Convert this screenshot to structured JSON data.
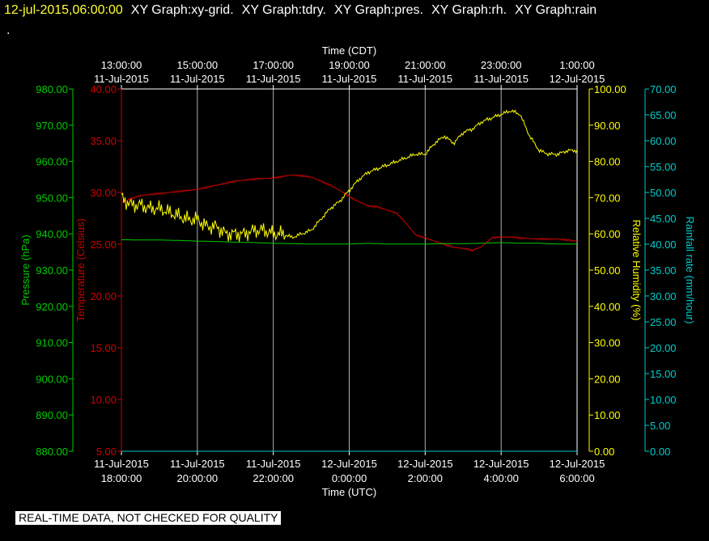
{
  "header": {
    "timestamp": "12-jul-2015,06:00:00",
    "graphs": [
      "XY Graph:xy-grid.",
      "XY Graph:tdry.",
      "XY Graph:pres.",
      "XY Graph:rh.",
      "XY Graph:rain"
    ],
    "dot": "."
  },
  "footer": {
    "quality_notice": "REAL-TIME DATA, NOT CHECKED FOR QUALITY"
  },
  "colors": {
    "pressure": "#00cc00",
    "temperature": "#cc0000",
    "humidity": "#ffff00",
    "rainfall": "#00cccc",
    "grid": "#b0b0b0"
  },
  "chart_data": {
    "type": "line",
    "x_top_label": "Time (CDT)",
    "x_bottom_label": "Time (UTC)",
    "x_top_ticks": [
      {
        "time": "13:00:00",
        "date": "11-Jul-2015"
      },
      {
        "time": "15:00:00",
        "date": "11-Jul-2015"
      },
      {
        "time": "17:00:00",
        "date": "11-Jul-2015"
      },
      {
        "time": "19:00:00",
        "date": "11-Jul-2015"
      },
      {
        "time": "21:00:00",
        "date": "11-Jul-2015"
      },
      {
        "time": "23:00:00",
        "date": "11-Jul-2015"
      },
      {
        "time": "1:00:00",
        "date": "12-Jul-2015"
      }
    ],
    "x_bottom_ticks": [
      {
        "date": "11-Jul-2015",
        "time": "18:00:00"
      },
      {
        "date": "11-Jul-2015",
        "time": "20:00:00"
      },
      {
        "date": "11-Jul-2015",
        "time": "22:00:00"
      },
      {
        "date": "12-Jul-2015",
        "time": "0:00:00"
      },
      {
        "date": "12-Jul-2015",
        "time": "2:00:00"
      },
      {
        "date": "12-Jul-2015",
        "time": "4:00:00"
      },
      {
        "date": "12-Jul-2015",
        "time": "6:00:00"
      }
    ],
    "x_range_utc": [
      "11-Jul-2015 18:00:00",
      "12-Jul-2015 06:00:00"
    ],
    "grid": true,
    "axes": {
      "pressure": {
        "label": "Pressure (hPa)",
        "range": [
          880,
          980
        ],
        "ticks": [
          "980.00",
          "970.00",
          "960.00",
          "950.00",
          "940.00",
          "930.00",
          "920.00",
          "910.00",
          "900.00",
          "890.00",
          "880.00"
        ]
      },
      "temperature": {
        "label": "Temperature (Celsius)",
        "range": [
          5,
          40
        ],
        "ticks": [
          "40.00",
          "35.00",
          "30.00",
          "25.00",
          "20.00",
          "15.00",
          "10.00",
          "5.00"
        ]
      },
      "humidity": {
        "label": "Relative Humidity (%)",
        "range": [
          0,
          100
        ],
        "ticks": [
          "100.00",
          "90.00",
          "80.00",
          "70.00",
          "60.00",
          "50.00",
          "40.00",
          "30.00",
          "20.00",
          "10.00",
          "0.00"
        ]
      },
      "rainfall": {
        "label": "Rainfall rate (mm/hour)",
        "range": [
          0,
          70
        ],
        "ticks": [
          "70.00",
          "65.00",
          "60.00",
          "55.00",
          "50.00",
          "45.00",
          "40.00",
          "35.00",
          "30.00",
          "25.00",
          "20.00",
          "15.00",
          "10.00",
          "5.00",
          "0.00"
        ]
      }
    },
    "series": [
      {
        "axis": "temperature",
        "x": [
          0,
          0.25,
          0.5,
          0.75,
          1,
          1.5,
          2,
          2.5,
          3,
          3.5,
          4,
          4.5,
          5,
          5.25,
          5.5,
          5.75,
          6,
          6.25,
          6.5,
          6.75,
          7,
          7.25,
          7.5,
          7.75,
          8,
          8.25,
          8.5,
          8.75,
          9,
          9.25,
          9.5,
          9.75,
          10,
          10.25,
          10.5,
          11,
          11.5,
          12
        ],
        "y": [
          29.0,
          29.4,
          29.7,
          29.8,
          29.9,
          30.1,
          30.3,
          30.7,
          31.1,
          31.3,
          31.4,
          31.7,
          31.5,
          31.1,
          30.7,
          30.2,
          29.6,
          29.1,
          28.7,
          28.6,
          28.3,
          28.0,
          27.0,
          25.9,
          25.6,
          25.3,
          25.0,
          24.7,
          24.6,
          24.4,
          24.8,
          25.6,
          25.7,
          25.7,
          25.6,
          25.5,
          25.5,
          25.3
        ]
      },
      {
        "axis": "humidity",
        "x": [
          0,
          0.25,
          0.5,
          0.75,
          1,
          1.25,
          1.5,
          1.75,
          2,
          2.25,
          2.5,
          2.75,
          3,
          3.25,
          3.5,
          3.75,
          4,
          4.25,
          4.5,
          4.75,
          5,
          5.25,
          5.5,
          5.75,
          6,
          6.25,
          6.5,
          6.75,
          7,
          7.25,
          7.5,
          7.75,
          8,
          8.25,
          8.5,
          8.75,
          9,
          9.25,
          9.5,
          9.75,
          10,
          10.25,
          10.5,
          10.75,
          11,
          11.25,
          11.5,
          11.75,
          12
        ],
        "y": [
          70,
          68,
          68,
          67,
          67,
          66,
          65,
          64,
          64,
          62,
          62,
          60,
          60,
          60,
          61,
          61,
          60,
          60,
          59,
          60,
          61,
          64,
          67,
          69,
          72,
          75,
          77,
          78,
          79,
          80,
          81,
          82,
          82,
          85,
          87,
          85,
          88,
          89,
          91,
          92,
          93,
          94,
          93,
          87,
          83,
          82,
          82,
          83,
          83
        ]
      },
      {
        "axis": "pressure",
        "x": [
          0,
          0.5,
          1,
          1.5,
          2,
          2.5,
          3,
          3.5,
          4,
          4.5,
          5,
          5.5,
          6,
          6.5,
          7,
          7.5,
          8,
          8.5,
          9,
          9.5,
          10,
          10.5,
          11,
          11.5,
          12
        ],
        "y": [
          938.4,
          938.3,
          938.3,
          938.2,
          938.0,
          937.9,
          937.7,
          937.6,
          937.4,
          937.3,
          937.2,
          937.2,
          937.2,
          937.4,
          937.2,
          937.2,
          937.2,
          937.3,
          937.3,
          937.4,
          937.6,
          937.4,
          937.4,
          937.2,
          937.2
        ]
      },
      {
        "axis": "rainfall",
        "x": [
          0,
          12
        ],
        "y": [
          0,
          0
        ]
      }
    ]
  }
}
